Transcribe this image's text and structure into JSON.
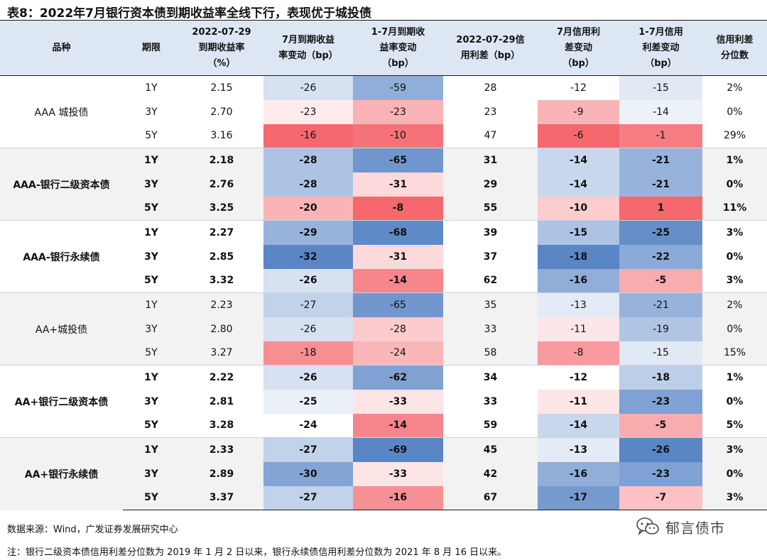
{
  "title": "表8：2022年7月银行资本债到期收益率全线下行，表现优于城投债",
  "headers": {
    "variety": "品种",
    "term": "期限",
    "ytm_l1": "2022-07-29",
    "ytm_l2": "到期收益率",
    "ytm_l3": "（%）",
    "jul_ytm_l1": "7月到期收益",
    "jul_ytm_l2": "率变动（bp）",
    "ytd_ytm_l1": "1-7月到期收",
    "ytd_ytm_l2": "益率变动",
    "ytd_ytm_l3": "（bp）",
    "spread_l1": "2022-07-29信",
    "spread_l2": "用利差（bp）",
    "jul_spread_l1": "7月信用利",
    "jul_spread_l2": "差变动",
    "jul_spread_l3": "（bp）",
    "ytd_spread_l1": "1-7月信用",
    "ytd_spread_l2": "利差变动",
    "ytd_spread_l3": "（bp）",
    "pct_l1": "信用利差",
    "pct_l2": "分位数"
  },
  "groups": [
    {
      "name": "AAA 城投债",
      "bold": false,
      "rows": [
        {
          "term": "1Y",
          "ytm": "2.15",
          "jul_ytm": "-26",
          "ytd_ytm": "-59",
          "spread": "28",
          "jul_spread": "-12",
          "ytd_spread": "-15",
          "pct": "2%"
        },
        {
          "term": "3Y",
          "ytm": "2.70",
          "jul_ytm": "-23",
          "ytd_ytm": "-23",
          "spread": "23",
          "jul_spread": "-9",
          "ytd_spread": "-14",
          "pct": "0%"
        },
        {
          "term": "5Y",
          "ytm": "3.16",
          "jul_ytm": "-16",
          "ytd_ytm": "-10",
          "spread": "47",
          "jul_spread": "-6",
          "ytd_spread": "-1",
          "pct": "29%"
        }
      ]
    },
    {
      "name": "AAA-银行二级资本债",
      "bold": true,
      "rows": [
        {
          "term": "1Y",
          "ytm": "2.18",
          "jul_ytm": "-28",
          "ytd_ytm": "-65",
          "spread": "31",
          "jul_spread": "-14",
          "ytd_spread": "-21",
          "pct": "1%"
        },
        {
          "term": "3Y",
          "ytm": "2.76",
          "jul_ytm": "-28",
          "ytd_ytm": "-31",
          "spread": "29",
          "jul_spread": "-14",
          "ytd_spread": "-21",
          "pct": "0%"
        },
        {
          "term": "5Y",
          "ytm": "3.25",
          "jul_ytm": "-20",
          "ytd_ytm": "-8",
          "spread": "55",
          "jul_spread": "-10",
          "ytd_spread": "1",
          "pct": "11%"
        }
      ]
    },
    {
      "name": "AAA-银行永续债",
      "bold": true,
      "rows": [
        {
          "term": "1Y",
          "ytm": "2.27",
          "jul_ytm": "-29",
          "ytd_ytm": "-68",
          "spread": "39",
          "jul_spread": "-15",
          "ytd_spread": "-25",
          "pct": "3%"
        },
        {
          "term": "3Y",
          "ytm": "2.85",
          "jul_ytm": "-32",
          "ytd_ytm": "-31",
          "spread": "37",
          "jul_spread": "-18",
          "ytd_spread": "-22",
          "pct": "0%"
        },
        {
          "term": "5Y",
          "ytm": "3.32",
          "jul_ytm": "-26",
          "ytd_ytm": "-14",
          "spread": "62",
          "jul_spread": "-16",
          "ytd_spread": "-5",
          "pct": "3%"
        }
      ]
    },
    {
      "name": "AA+城投债",
      "bold": false,
      "rows": [
        {
          "term": "1Y",
          "ytm": "2.23",
          "jul_ytm": "-27",
          "ytd_ytm": "-65",
          "spread": "35",
          "jul_spread": "-13",
          "ytd_spread": "-21",
          "pct": "2%"
        },
        {
          "term": "3Y",
          "ytm": "2.80",
          "jul_ytm": "-26",
          "ytd_ytm": "-28",
          "spread": "33",
          "jul_spread": "-11",
          "ytd_spread": "-19",
          "pct": "0%"
        },
        {
          "term": "5Y",
          "ytm": "3.27",
          "jul_ytm": "-18",
          "ytd_ytm": "-24",
          "spread": "58",
          "jul_spread": "-8",
          "ytd_spread": "-15",
          "pct": "15%"
        }
      ]
    },
    {
      "name": "AA+银行二级资本债",
      "bold": true,
      "rows": [
        {
          "term": "1Y",
          "ytm": "2.22",
          "jul_ytm": "-26",
          "ytd_ytm": "-62",
          "spread": "34",
          "jul_spread": "-12",
          "ytd_spread": "-18",
          "pct": "1%"
        },
        {
          "term": "3Y",
          "ytm": "2.81",
          "jul_ytm": "-25",
          "ytd_ytm": "-33",
          "spread": "33",
          "jul_spread": "-11",
          "ytd_spread": "-23",
          "pct": "0%"
        },
        {
          "term": "5Y",
          "ytm": "3.28",
          "jul_ytm": "-24",
          "ytd_ytm": "-14",
          "spread": "59",
          "jul_spread": "-14",
          "ytd_spread": "-5",
          "pct": "5%"
        }
      ]
    },
    {
      "name": "AA+银行永续债",
      "bold": true,
      "rows": [
        {
          "term": "1Y",
          "ytm": "2.33",
          "jul_ytm": "-27",
          "ytd_ytm": "-69",
          "spread": "45",
          "jul_spread": "-13",
          "ytd_spread": "-26",
          "pct": "3%"
        },
        {
          "term": "3Y",
          "ytm": "2.89",
          "jul_ytm": "-30",
          "ytd_ytm": "-33",
          "spread": "42",
          "jul_spread": "-16",
          "ytd_spread": "-23",
          "pct": "0%"
        },
        {
          "term": "5Y",
          "ytm": "3.37",
          "jul_ytm": "-27",
          "ytd_ytm": "-16",
          "spread": "67",
          "jul_spread": "-17",
          "ytd_spread": "-7",
          "pct": "3%"
        }
      ]
    }
  ],
  "heat_colors": {
    "blue_dark": "#5a86c6",
    "white": "#ffffff",
    "red_dark": "#f4686e",
    "group_shade": "#f2f2f2",
    "header_bg": "#dde7f3"
  },
  "source": "数据来源：Wind，广发证券发展研究中心",
  "note": "注：银行二级资本债信用利差分位数为 2019 年 1 月 2 日以来，银行永续债信用利差分位数为 2021 年 8 月 16 日以来。",
  "watermark": "郁言债市"
}
